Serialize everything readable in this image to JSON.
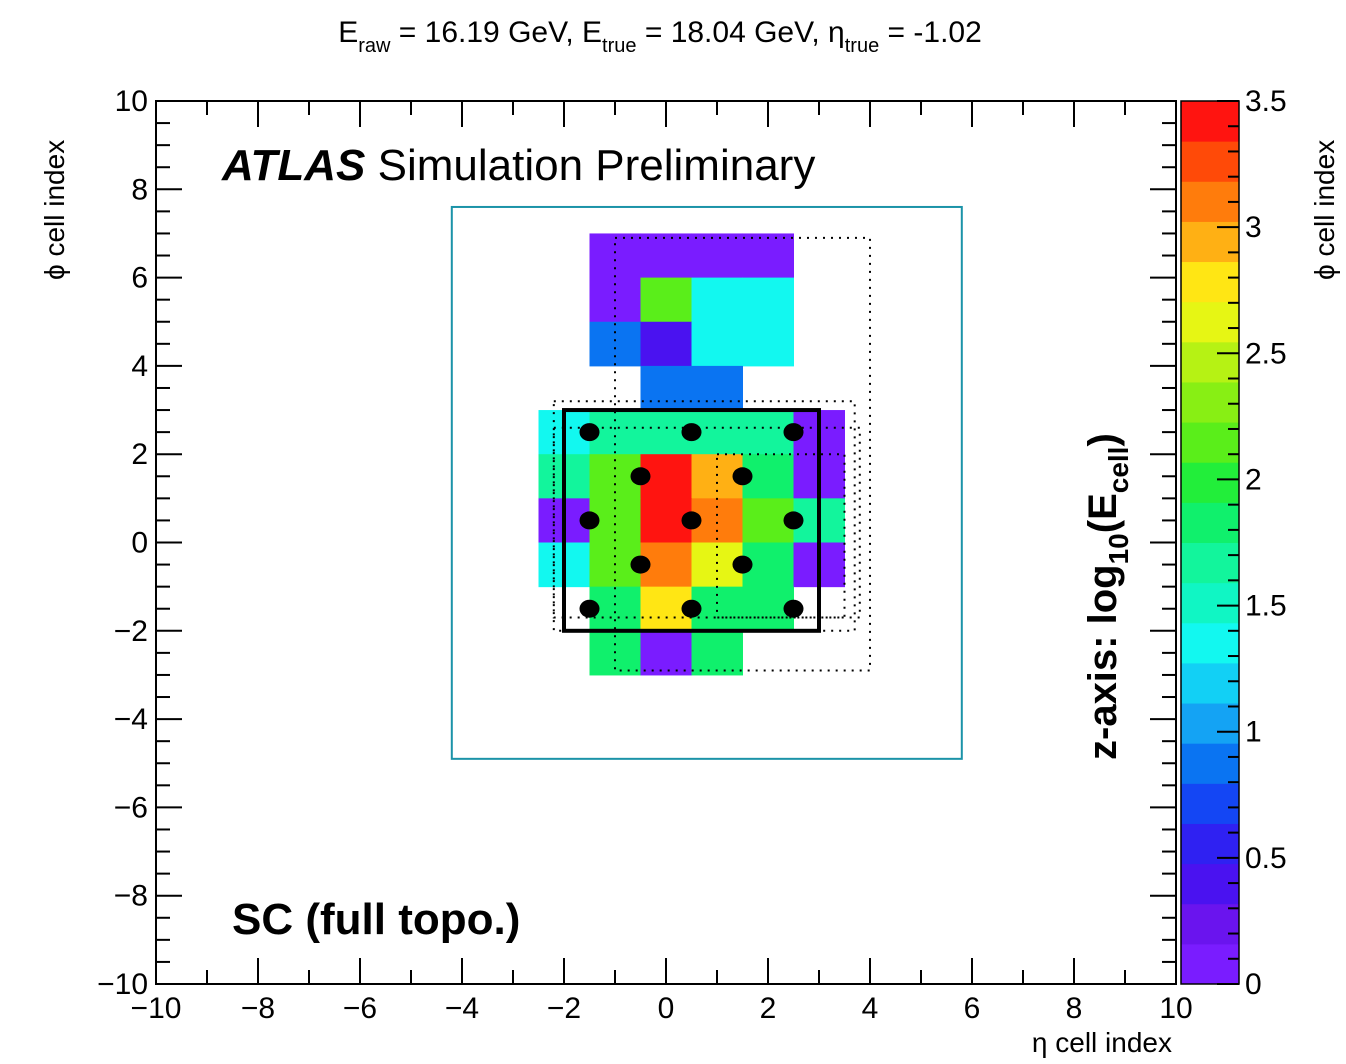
{
  "chart_data": {
    "type": "heatmap",
    "title_parts": {
      "e_raw_main": "E",
      "e_raw_sub": "raw",
      "e_raw_value": " = 16.19 GeV, ",
      "e_true_main": "E",
      "e_true_sub": "true",
      "e_true_value": " = 18.04 GeV, ",
      "eta_main": "η",
      "eta_sub": "true",
      "eta_value": " = -1.02"
    },
    "xlabel": "η cell index",
    "ylabel_left": "ϕ cell index",
    "ylabel_right": "ϕ cell index",
    "zlabel": {
      "prefix": "z-axis: log",
      "sub10": "10",
      "paren_open": "(E",
      "sub_cell": "cell",
      "paren_close": ")"
    },
    "annotation_atlas_bold": "ATLAS",
    "annotation_atlas_rest": " Simulation Preliminary",
    "annotation_sc": "SC (full topo.)",
    "xlim": [
      -10,
      10
    ],
    "ylim": [
      -10,
      10
    ],
    "zlim": [
      0,
      3.5
    ],
    "x_ticks": [
      {
        "value": -10,
        "label": "−10"
      },
      {
        "value": -8,
        "label": "−8"
      },
      {
        "value": -6,
        "label": "−6"
      },
      {
        "value": -4,
        "label": "−4"
      },
      {
        "value": -2,
        "label": "−2"
      },
      {
        "value": 0,
        "label": "0"
      },
      {
        "value": 2,
        "label": "2"
      },
      {
        "value": 4,
        "label": "4"
      },
      {
        "value": 6,
        "label": "6"
      },
      {
        "value": 8,
        "label": "8"
      },
      {
        "value": 10,
        "label": "10"
      }
    ],
    "y_ticks": [
      {
        "value": -10,
        "label": "−10"
      },
      {
        "value": -8,
        "label": "−8"
      },
      {
        "value": -6,
        "label": "−6"
      },
      {
        "value": -4,
        "label": "−4"
      },
      {
        "value": -2,
        "label": "−2"
      },
      {
        "value": 0,
        "label": "0"
      },
      {
        "value": 2,
        "label": "2"
      },
      {
        "value": 4,
        "label": "4"
      },
      {
        "value": 6,
        "label": "6"
      },
      {
        "value": 8,
        "label": "8"
      },
      {
        "value": 10,
        "label": "10"
      }
    ],
    "z_ticks": [
      {
        "value": 0,
        "label": "0"
      },
      {
        "value": 0.5,
        "label": "0.5"
      },
      {
        "value": 1,
        "label": "1"
      },
      {
        "value": 1.5,
        "label": "1.5"
      },
      {
        "value": 2,
        "label": "2"
      },
      {
        "value": 2.5,
        "label": "2.5"
      },
      {
        "value": 3,
        "label": "3"
      },
      {
        "value": 3.5,
        "label": "3.5"
      }
    ],
    "palette": [
      "#7a1cff",
      "#6a14ee",
      "#4a12f0",
      "#2f21f2",
      "#1446f4",
      "#0a74f2",
      "#14a3f4",
      "#12d0f5",
      "#12f8f0",
      "#10f6c4",
      "#12f59c",
      "#10f06c",
      "#22ee3a",
      "#5aee1a",
      "#88ef14",
      "#b6f214",
      "#e6f614",
      "#ffe614",
      "#ffb014",
      "#ff7c0c",
      "#ff4a08",
      "#ff1410"
    ],
    "cells": [
      {
        "x": -1,
        "y": 6.5,
        "z": 0.05
      },
      {
        "x": 0,
        "y": 6.5,
        "z": 0.05
      },
      {
        "x": 1,
        "y": 6.5,
        "z": 0.05
      },
      {
        "x": 2,
        "y": 6.5,
        "z": 0.05
      },
      {
        "x": -1,
        "y": 5.5,
        "z": 0.05
      },
      {
        "x": 0,
        "y": 5.5,
        "z": 2.1
      },
      {
        "x": 1,
        "y": 5.5,
        "z": 1.4
      },
      {
        "x": 2,
        "y": 5.5,
        "z": 1.4
      },
      {
        "x": -1,
        "y": 4.5,
        "z": 0.9
      },
      {
        "x": 0,
        "y": 4.5,
        "z": 0.4
      },
      {
        "x": 1,
        "y": 4.5,
        "z": 1.4
      },
      {
        "x": 2,
        "y": 4.5,
        "z": 1.4
      },
      {
        "x": 0,
        "y": 3.5,
        "z": 0.9
      },
      {
        "x": 1,
        "y": 3.5,
        "z": 0.9
      },
      {
        "x": -2,
        "y": 2.5,
        "z": 1.4
      },
      {
        "x": -1,
        "y": 2.5,
        "z": 1.7
      },
      {
        "x": 0,
        "y": 2.5,
        "z": 1.7
      },
      {
        "x": 1,
        "y": 2.5,
        "z": 1.7
      },
      {
        "x": 2,
        "y": 2.5,
        "z": 1.6
      },
      {
        "x": 3,
        "y": 2.5,
        "z": 0.05
      },
      {
        "x": -2,
        "y": 1.5,
        "z": 1.7
      },
      {
        "x": -1,
        "y": 1.5,
        "z": 2.2
      },
      {
        "x": 0,
        "y": 1.5,
        "z": 3.5
      },
      {
        "x": 1,
        "y": 1.5,
        "z": 2.9
      },
      {
        "x": 2,
        "y": 1.5,
        "z": 1.9
      },
      {
        "x": 3,
        "y": 1.5,
        "z": 0.05
      },
      {
        "x": -2,
        "y": 0.5,
        "z": 0.05
      },
      {
        "x": -1,
        "y": 0.5,
        "z": 2.2
      },
      {
        "x": 0,
        "y": 0.5,
        "z": 3.5
      },
      {
        "x": 1,
        "y": 0.5,
        "z": 3.1
      },
      {
        "x": 2,
        "y": 0.5,
        "z": 2.1
      },
      {
        "x": 3,
        "y": 0.5,
        "z": 1.7
      },
      {
        "x": -2,
        "y": -0.5,
        "z": 1.4
      },
      {
        "x": -1,
        "y": -0.5,
        "z": 2.2
      },
      {
        "x": 0,
        "y": -0.5,
        "z": 3.1
      },
      {
        "x": 1,
        "y": -0.5,
        "z": 2.6
      },
      {
        "x": 2,
        "y": -0.5,
        "z": 1.9
      },
      {
        "x": 3,
        "y": -0.5,
        "z": 0.05
      },
      {
        "x": -1,
        "y": -1.5,
        "z": 1.8
      },
      {
        "x": 0,
        "y": -1.5,
        "z": 2.8
      },
      {
        "x": 1,
        "y": -1.5,
        "z": 1.9
      },
      {
        "x": 2,
        "y": -1.5,
        "z": 1.9
      },
      {
        "x": -1,
        "y": -2.5,
        "z": 1.9
      },
      {
        "x": 0,
        "y": -2.5,
        "z": 0.05
      },
      {
        "x": 1,
        "y": -2.5,
        "z": 1.8
      }
    ],
    "markers": [
      {
        "x": -1.5,
        "y": 2.5
      },
      {
        "x": 0.5,
        "y": 2.5
      },
      {
        "x": 2.5,
        "y": 2.5
      },
      {
        "x": -0.5,
        "y": 1.5
      },
      {
        "x": 1.5,
        "y": 1.5
      },
      {
        "x": -1.5,
        "y": 0.5
      },
      {
        "x": 0.5,
        "y": 0.5
      },
      {
        "x": 2.5,
        "y": 0.5
      },
      {
        "x": -0.5,
        "y": -0.5
      },
      {
        "x": 1.5,
        "y": -0.5
      },
      {
        "x": -1.5,
        "y": -1.5
      },
      {
        "x": 0.5,
        "y": -1.5
      },
      {
        "x": 2.5,
        "y": -1.5
      }
    ],
    "boxes": {
      "outer_box": {
        "x0": -4.2,
        "x1": 5.8,
        "y0": -4.9,
        "y1": 7.6,
        "color": "#1b93a8"
      },
      "solid_box": {
        "x0": -2,
        "x1": 3,
        "y0": -2,
        "y1": 3
      },
      "dotted_boxes": [
        {
          "x0": -1,
          "x1": 4,
          "y0": -2.9,
          "y1": 6.9
        },
        {
          "x0": -2.2,
          "x1": 3.7,
          "y0": -2,
          "y1": 3.2
        },
        {
          "x0": -2.2,
          "x1": 3.8,
          "y0": -1.7,
          "y1": 2.6
        },
        {
          "x0": 1,
          "x1": 3.5,
          "y0": -1.7,
          "y1": 2
        }
      ]
    }
  }
}
